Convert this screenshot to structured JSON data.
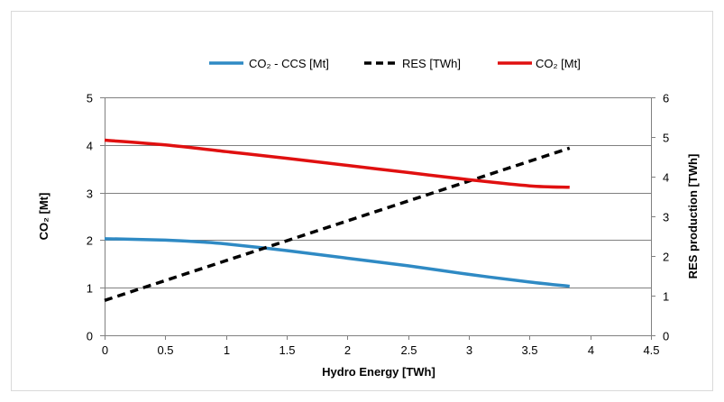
{
  "chart_data": {
    "type": "line",
    "title": "",
    "xlabel": "Hydro Energy [TWh]",
    "ylabel_left": "CO₂ [Mt]",
    "ylabel_right": "RES production [TWh]",
    "xlim": [
      0,
      4.5
    ],
    "ylim_left": [
      0,
      5
    ],
    "ylim_right": [
      0,
      6
    ],
    "x_ticks": [
      "0",
      "0.5",
      "1",
      "1.5",
      "2",
      "2.5",
      "3",
      "3.5",
      "4",
      "4.5"
    ],
    "y_left_ticks": [
      "0",
      "1",
      "2",
      "3",
      "4",
      "5"
    ],
    "y_right_ticks": [
      "0",
      "1",
      "2",
      "3",
      "4",
      "5",
      "6"
    ],
    "grid": "horizontal",
    "legend_position": "top",
    "series": [
      {
        "name": "CO₂ - CCS [Mt]",
        "axis": "left",
        "color": "#2f8ac4",
        "style": "solid",
        "x": [
          0,
          0.5,
          0.8,
          1.0,
          1.5,
          2.0,
          2.5,
          3.0,
          3.5,
          3.83
        ],
        "y": [
          2.03,
          2.0,
          1.96,
          1.92,
          1.78,
          1.62,
          1.46,
          1.28,
          1.12,
          1.03
        ]
      },
      {
        "name": "RES [TWh]",
        "axis": "right",
        "color": "#000000",
        "style": "dashed",
        "x": [
          0,
          3.83
        ],
        "y": [
          0.88,
          4.72
        ]
      },
      {
        "name": "CO₂ [Mt]",
        "axis": "left",
        "color": "#e01010",
        "style": "solid",
        "x": [
          0,
          0.5,
          1.0,
          1.5,
          2.0,
          2.5,
          3.0,
          3.5,
          3.83
        ],
        "y": [
          4.1,
          4.0,
          3.86,
          3.72,
          3.57,
          3.42,
          3.27,
          3.14,
          3.11
        ]
      }
    ]
  }
}
